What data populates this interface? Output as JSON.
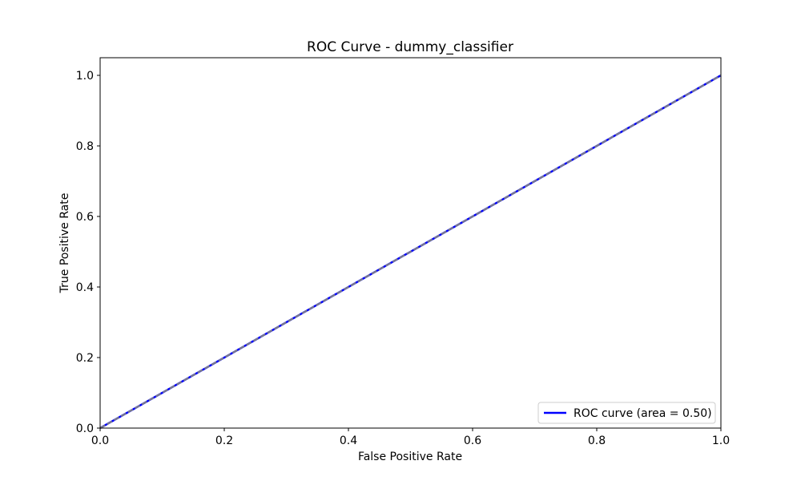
{
  "chart_data": {
    "type": "line",
    "title": "ROC Curve - dummy_classifier",
    "xlabel": "False Positive Rate",
    "ylabel": "True Positive Rate",
    "xlim": [
      0.0,
      1.0
    ],
    "ylim": [
      0.0,
      1.05
    ],
    "x_ticks": [
      0.0,
      0.2,
      0.4,
      0.6,
      0.8,
      1.0
    ],
    "x_tick_labels": [
      "0.0",
      "0.2",
      "0.4",
      "0.6",
      "0.8",
      "1.0"
    ],
    "y_ticks": [
      0.0,
      0.2,
      0.4,
      0.6,
      0.8,
      1.0
    ],
    "y_tick_labels": [
      "0.0",
      "0.2",
      "0.4",
      "0.6",
      "0.8",
      "1.0"
    ],
    "grid": false,
    "legend_position": "lower-right",
    "series": [
      {
        "name": "ROC curve (area = 0.50)",
        "x": [
          0.0,
          1.0
        ],
        "y": [
          0.0,
          1.0
        ],
        "color": "#0000ff",
        "style": "solid"
      },
      {
        "x": [
          0.0,
          1.0
        ],
        "y": [
          0.0,
          1.0
        ],
        "color": "#808080",
        "style": "dashed"
      }
    ]
  }
}
